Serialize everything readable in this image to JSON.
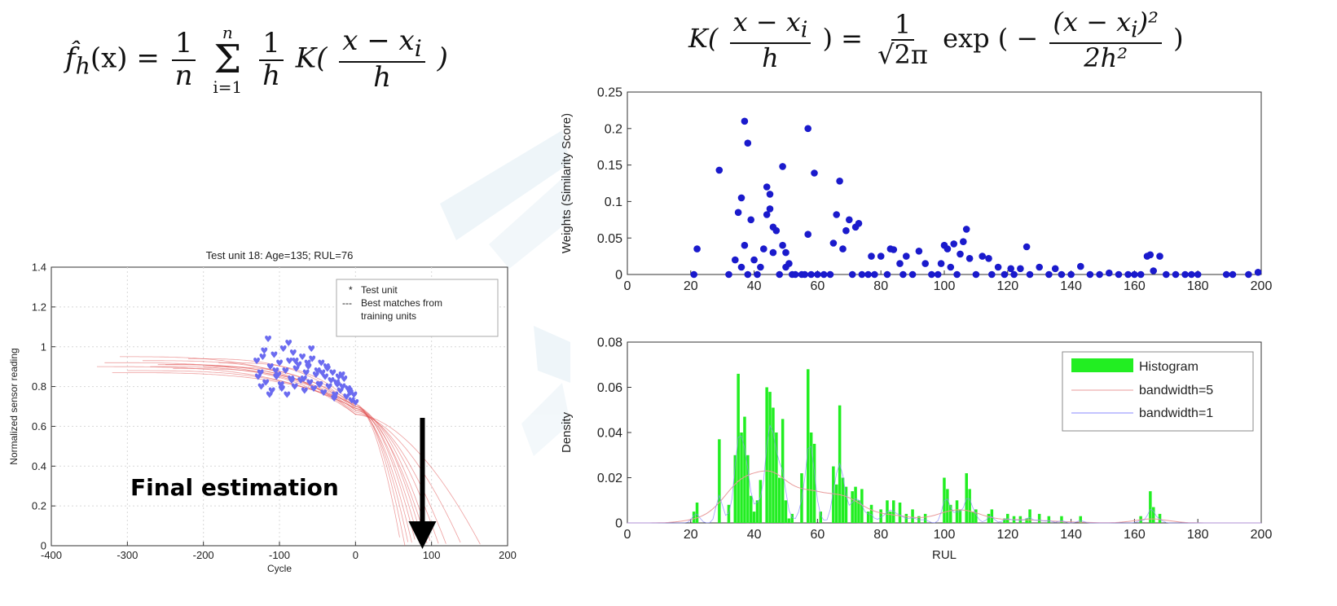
{
  "formulas": {
    "left": {
      "f": "f̂",
      "sub": "h",
      "arg": "(x) = ",
      "one": "1",
      "n": "n",
      "sum_top": "n",
      "sum_bottom": "i=1",
      "h": "h",
      "K": "K(",
      "num": "x − x",
      "num_sub": "i",
      "den": "h",
      "close": ")"
    },
    "right": {
      "K": "K(",
      "num": "x − x",
      "num_sub": "i",
      "den": "h",
      "eq": ") = ",
      "one": "1",
      "sqrt": "√2π",
      "exp": " exp ",
      "open": "( −",
      "num2": "(x − x",
      "num2_sub": "i",
      "num2_end": ")²",
      "den2": "2h²",
      "close": ")"
    }
  },
  "final_label": "Final estimation",
  "chart_data": [
    {
      "id": "sensor",
      "type": "line",
      "title": "Test unit 18: Age=135; RUL=76",
      "xlabel": "Cycle",
      "ylabel": "Normalized sensor reading",
      "xlim": [
        -400,
        200
      ],
      "ylim": [
        0,
        1.4
      ],
      "xticks": [
        -400,
        -300,
        -200,
        -100,
        0,
        100,
        200
      ],
      "yticks": [
        0,
        0.2,
        0.4,
        0.6,
        0.8,
        1,
        1.2,
        1.4
      ],
      "ytick_labels": [
        "0",
        "0.2",
        "0.4",
        "0.6",
        "0.8",
        "1",
        "1.2",
        "1.4"
      ],
      "grid": true,
      "legend": [
        "Test unit",
        "Best matches from training units"
      ],
      "legend_marks": [
        "*",
        "---"
      ],
      "legend_position": "top-right",
      "test_unit_x": [
        -130,
        -125,
        -122,
        -118,
        -115,
        -112,
        -110,
        -107,
        -104,
        -100,
        -98,
        -95,
        -92,
        -90,
        -87,
        -85,
        -82,
        -80,
        -78,
        -75,
        -72,
        -70,
        -67,
        -65,
        -62,
        -60,
        -57,
        -55,
        -52,
        -50,
        -47,
        -45,
        -42,
        -40,
        -37,
        -35,
        -32,
        -30,
        -27,
        -25,
        -22,
        -20,
        -17,
        -15,
        -12,
        -10,
        -7,
        -5,
        -2,
        0,
        -128,
        -120,
        -113,
        -105,
        -97,
        -88,
        -79,
        -68,
        -58,
        -48,
        -38,
        -28,
        -18,
        -8,
        -124,
        -102,
        -84,
        -63,
        -44,
        -24
      ],
      "test_unit_y": [
        0.93,
        0.87,
        0.95,
        0.82,
        1.04,
        0.9,
        0.78,
        0.96,
        0.85,
        0.92,
        0.81,
        0.99,
        0.88,
        0.76,
        0.93,
        0.84,
        0.97,
        0.8,
        0.89,
        0.91,
        0.83,
        0.95,
        0.78,
        0.87,
        0.9,
        0.82,
        0.94,
        0.79,
        0.86,
        0.88,
        0.81,
        0.92,
        0.77,
        0.85,
        0.89,
        0.8,
        0.83,
        0.87,
        0.76,
        0.82,
        0.85,
        0.78,
        0.8,
        0.84,
        0.75,
        0.79,
        0.77,
        0.73,
        0.76,
        0.72,
        0.85,
        0.98,
        0.76,
        0.88,
        0.79,
        1.02,
        0.93,
        0.84,
        0.99,
        0.81,
        0.9,
        0.74,
        0.86,
        0.78,
        0.8,
        0.86,
        0.83,
        0.92,
        0.87,
        0.81
      ],
      "match_curves": [
        {
          "x0": -340,
          "y0": 0.9,
          "xe": 75,
          "c": 0.69
        },
        {
          "x0": -330,
          "y0": 0.92,
          "xe": 70,
          "c": 0.7
        },
        {
          "x0": -300,
          "y0": 0.88,
          "xe": 85,
          "c": 0.69
        },
        {
          "x0": -280,
          "y0": 0.93,
          "xe": 65,
          "c": 0.71
        },
        {
          "x0": -260,
          "y0": 0.91,
          "xe": 95,
          "c": 0.68
        },
        {
          "x0": -240,
          "y0": 0.89,
          "xe": 80,
          "c": 0.7
        },
        {
          "x0": -220,
          "y0": 0.94,
          "xe": 100,
          "c": 0.69
        },
        {
          "x0": -200,
          "y0": 0.9,
          "xe": 110,
          "c": 0.68
        },
        {
          "x0": -320,
          "y0": 0.87,
          "xe": 60,
          "c": 0.71
        },
        {
          "x0": -310,
          "y0": 0.95,
          "xe": 120,
          "c": 0.67
        },
        {
          "x0": -180,
          "y0": 0.92,
          "xe": 90,
          "c": 0.7
        },
        {
          "x0": -270,
          "y0": 0.9,
          "xe": 140,
          "c": 0.66
        },
        {
          "x0": -250,
          "y0": 0.91,
          "xe": 165,
          "c": 0.66
        }
      ],
      "arrow_x": 88
    },
    {
      "id": "weights",
      "type": "scatter",
      "title": "",
      "xlabel": "",
      "ylabel": "Weights (Similarity Score)",
      "xlim": [
        0,
        200
      ],
      "ylim": [
        0,
        0.25
      ],
      "xticks": [
        0,
        20,
        40,
        60,
        80,
        100,
        120,
        140,
        160,
        180,
        200
      ],
      "yticks": [
        0,
        0.05,
        0.1,
        0.15,
        0.2,
        0.25
      ],
      "ytick_labels": [
        "0",
        "0.05",
        "0.1",
        "0.15",
        "0.2",
        "0.25"
      ],
      "grid": false,
      "x": [
        21,
        22,
        29,
        32,
        34,
        35,
        36,
        36,
        37,
        37,
        38,
        38,
        39,
        40,
        41,
        42,
        43,
        44,
        44,
        45,
        45,
        46,
        46,
        47,
        48,
        49,
        49,
        50,
        50,
        51,
        52,
        53,
        55,
        56,
        57,
        57,
        58,
        59,
        60,
        62,
        64,
        65,
        66,
        67,
        68,
        69,
        70,
        71,
        72,
        73,
        74,
        76,
        77,
        78,
        80,
        82,
        83,
        84,
        86,
        87,
        88,
        90,
        92,
        94,
        96,
        98,
        99,
        100,
        101,
        102,
        103,
        104,
        105,
        106,
        107,
        108,
        110,
        112,
        114,
        115,
        117,
        119,
        121,
        122,
        124,
        126,
        127,
        130,
        133,
        135,
        137,
        140,
        143,
        146,
        149,
        152,
        155,
        158,
        160,
        162,
        164,
        165,
        166,
        168,
        170,
        173,
        176,
        178,
        180,
        189,
        191,
        196,
        199
      ],
      "y": [
        0,
        0.035,
        0.143,
        0,
        0.02,
        0.085,
        0.105,
        0.01,
        0.21,
        0.04,
        0.18,
        0,
        0.075,
        0.02,
        0,
        0.01,
        0.035,
        0.082,
        0.12,
        0.09,
        0.11,
        0.03,
        0.065,
        0.06,
        0,
        0.04,
        0.148,
        0.03,
        0.01,
        0.015,
        0,
        0,
        0,
        0,
        0.2,
        0.055,
        0,
        0.139,
        0,
        0,
        0,
        0.043,
        0.082,
        0.128,
        0.035,
        0.06,
        0.075,
        0,
        0.065,
        0.07,
        0,
        0,
        0.025,
        0,
        0.025,
        0,
        0.035,
        0.034,
        0.015,
        0,
        0.025,
        0,
        0.032,
        0.015,
        0,
        0,
        0.015,
        0.04,
        0.035,
        0.01,
        0.042,
        0,
        0.028,
        0.045,
        0.062,
        0.022,
        0,
        0.025,
        0.022,
        0,
        0.01,
        0,
        0.008,
        0,
        0.008,
        0.038,
        0,
        0.01,
        0,
        0.008,
        0,
        0,
        0.011,
        0,
        0,
        0.002,
        0,
        0,
        0,
        0,
        0.025,
        0.027,
        0.005,
        0.025,
        0,
        0,
        0,
        0,
        0,
        0,
        0,
        0,
        0.003
      ]
    },
    {
      "id": "density",
      "type": "bar",
      "title": "",
      "xlabel": "RUL",
      "ylabel": "Density",
      "xlim": [
        0,
        200
      ],
      "ylim": [
        0,
        0.08
      ],
      "xticks": [
        0,
        20,
        40,
        60,
        80,
        100,
        120,
        140,
        160,
        180,
        200
      ],
      "yticks": [
        0,
        0.02,
        0.04,
        0.06,
        0.08
      ],
      "ytick_labels": [
        "0",
        "0.02",
        "0.04",
        "0.06",
        "0.08"
      ],
      "grid": false,
      "legend": [
        "Histogram",
        "bandwidth=5",
        "bandwidth=1"
      ],
      "legend_position": "top-right",
      "series": [
        {
          "name": "Histogram",
          "x": [
            21,
            22,
            29,
            32,
            34,
            35,
            36,
            37,
            38,
            39,
            40,
            41,
            42,
            44,
            45,
            46,
            47,
            48,
            49,
            50,
            51,
            52,
            55,
            57,
            58,
            59,
            61,
            65,
            66,
            67,
            68,
            69,
            71,
            72,
            73,
            74,
            76,
            77,
            80,
            82,
            83,
            84,
            86,
            88,
            90,
            92,
            94,
            100,
            101,
            102,
            104,
            105,
            107,
            108,
            109,
            110,
            114,
            115,
            119,
            120,
            122,
            124,
            126,
            127,
            130,
            133,
            137,
            143,
            162,
            165,
            166,
            168
          ],
          "values": [
            0.005,
            0.009,
            0.037,
            0.008,
            0.03,
            0.066,
            0.04,
            0.047,
            0.03,
            0.012,
            0.005,
            0.01,
            0.019,
            0.06,
            0.058,
            0.051,
            0.04,
            0.02,
            0.046,
            0.01,
            0.002,
            0.004,
            0.022,
            0.068,
            0.04,
            0.035,
            0.005,
            0.025,
            0.017,
            0.052,
            0.02,
            0.016,
            0.014,
            0.016,
            0.01,
            0.015,
            0.005,
            0.008,
            0.006,
            0.01,
            0.005,
            0.01,
            0.009,
            0.004,
            0.006,
            0.003,
            0.004,
            0.02,
            0.015,
            0.008,
            0.01,
            0.006,
            0.022,
            0.015,
            0.005,
            0.006,
            0.004,
            0.006,
            0.002,
            0.004,
            0.003,
            0.003,
            0.002,
            0.006,
            0.004,
            0.003,
            0.003,
            0.003,
            0.003,
            0.014,
            0.007,
            0.004
          ],
          "color": "#22ee22"
        },
        {
          "name": "bandwidth=5",
          "color": "#e89a9a"
        },
        {
          "name": "bandwidth=1",
          "color": "#8888ff"
        }
      ]
    }
  ]
}
